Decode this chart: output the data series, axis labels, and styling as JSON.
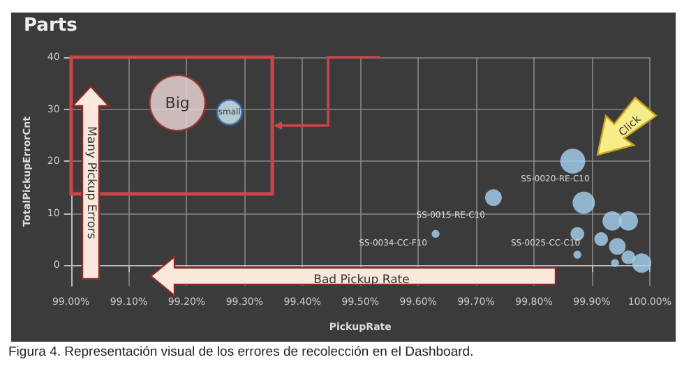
{
  "chart_data": {
    "type": "bubble",
    "title": "Parts",
    "xlabel": "PickupRate",
    "ylabel": "TotalPickupErrorCnt",
    "x": [
      99.184,
      99.274,
      99.867,
      99.886,
      99.73,
      99.63,
      99.875,
      99.875,
      99.935,
      99.963,
      99.916,
      99.944,
      99.963,
      99.986,
      99.94
    ],
    "values": [
      31.2,
      29.4,
      20,
      12,
      13,
      6,
      6,
      2,
      8.5,
      8.5,
      5,
      3.6,
      1.5,
      0.4,
      0.4
    ],
    "sizes": [
      1,
      0.2,
      0.2,
      0.16,
      0.09,
      0.02,
      0.06,
      0.02,
      0.12,
      0.12,
      0.06,
      0.09,
      0.06,
      0.12,
      0.02
    ],
    "colors": [
      "#f2dcdc",
      "#d6ecf8",
      "#a9d3f2",
      "#a9d3f2",
      "#a9d3f2",
      "#a9d3f2",
      "#a9d3f2",
      "#a9d3f2",
      "#a9d3f2",
      "#a9d3f2",
      "#a9d3f2",
      "#a9d3f2",
      "#a9d3f2",
      "#a9d3f2",
      "#a9d3f2"
    ],
    "xlim": [
      99.0,
      100.0
    ],
    "xticks": [
      {
        "value": 99.0,
        "label": "99.00%"
      },
      {
        "value": 99.1,
        "label": "99.10%"
      },
      {
        "value": 99.2,
        "label": "99.20%"
      },
      {
        "value": 99.3,
        "label": "99.30%"
      },
      {
        "value": 99.4,
        "label": "99.40%"
      },
      {
        "value": 99.5,
        "label": "99.50%"
      },
      {
        "value": 99.6,
        "label": "99.60%"
      },
      {
        "value": 99.7,
        "label": "99.70%"
      },
      {
        "value": 99.8,
        "label": "99.80%"
      },
      {
        "value": 99.9,
        "label": "99.90%"
      },
      {
        "value": 100.0,
        "label": "100.00%"
      }
    ],
    "ylim": [
      -4,
      40
    ],
    "yticks": [
      0,
      10,
      20,
      30,
      40
    ],
    "grid": true,
    "annotations": [
      "Many Pickup Errors",
      "Bad Pickup Rate",
      "Click",
      "Figura 4. Representación visual de los errores de recolección en el Dashboard.",
      {
        "text": "Big",
        "x": 99.184,
        "y": 31.2
      },
      {
        "text": "small",
        "x": 99.274,
        "y": 29.4
      },
      {
        "text": "SS-0020-RE-C10",
        "x": 99.867,
        "y": 20
      },
      {
        "text": "SS-0015-RE-C10",
        "x": 99.73,
        "y": 13
      },
      {
        "text": "SS-0034-CC-F10",
        "x": 99.63,
        "y": 6
      },
      {
        "text": "SS-0025-CC-C10",
        "x": 99.875,
        "y": 6
      }
    ]
  }
}
